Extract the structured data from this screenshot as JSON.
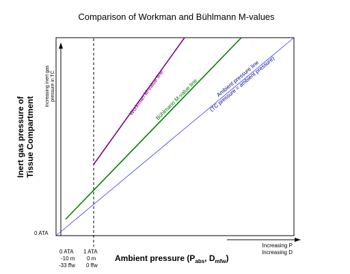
{
  "title": "Comparison of Workman and Bühlmann M-values",
  "y_axis": {
    "label_line1": "Inert gas pressure of",
    "label_line2": "Tissue Compartment",
    "arrow_note_line1": "Increasing inert gas",
    "arrow_note_line2": "pressure in TC",
    "origin_label": "0 ATA"
  },
  "x_axis": {
    "label_main": "Ambient pressure (P",
    "label_sub1": "abs",
    "label_sep": ", D",
    "label_sub2": "mfw",
    "label_close": ")",
    "arrow_note_line1": "Increasing P",
    "arrow_note_line2": "Increasing D",
    "tick0": [
      "0 ATA",
      "-10 m",
      "-33 ffw"
    ],
    "tick1": [
      "1 ATA",
      "0 m",
      "0 ffw"
    ]
  },
  "lines": {
    "workman": {
      "label": "Workman M-value line",
      "color": "#800080"
    },
    "buhlmann": {
      "label": "Bühlmann M-value line",
      "color": "#007a00"
    },
    "ambient": {
      "label_line1": "Ambient pressure line",
      "label_line2": "(TC pressure = ambient pressure)",
      "color": "#0000ff",
      "label_color": "#000099"
    }
  },
  "colors": {
    "frame": "#000000",
    "dashed": "#000000"
  }
}
